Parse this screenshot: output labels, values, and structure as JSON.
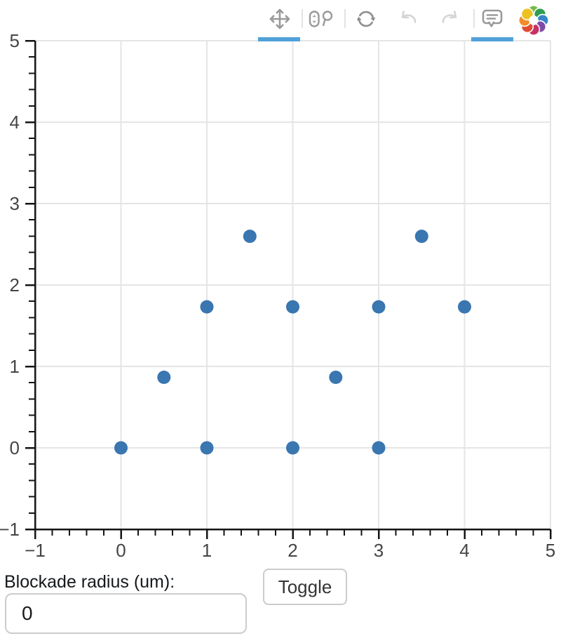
{
  "page": {
    "background": "#ffffff"
  },
  "toolbar": {
    "icon_color": "#9a9a9a",
    "disabled_icon_color": "#d5d5d5",
    "active_highlight_color": "#50a1d8",
    "logo_colors": [
      "#74BB44",
      "#2F9E4F",
      "#3686C7",
      "#7D4DA8",
      "#C63168",
      "#E14B31",
      "#F28C28",
      "#EDC21C"
    ],
    "tools": [
      {
        "id": "pan",
        "active": true
      },
      {
        "id": "wheel-zoom",
        "active": false
      },
      {
        "id": "reset",
        "active": false
      },
      {
        "id": "undo",
        "disabled": true
      },
      {
        "id": "redo",
        "disabled": true
      },
      {
        "id": "hover",
        "active": true
      }
    ]
  },
  "chart_data": {
    "type": "scatter",
    "title": "",
    "xlabel": "",
    "ylabel": "",
    "xlim": [
      -1,
      5
    ],
    "ylim": [
      -1,
      5
    ],
    "x_ticks": [
      -1,
      0,
      1,
      2,
      3,
      4,
      5
    ],
    "y_ticks": [
      -1,
      0,
      1,
      2,
      3,
      4,
      5
    ],
    "minor_tick_step": 0.2,
    "grid": true,
    "grid_color": "#e5e5e5",
    "axis_color": "#141414",
    "tick_label_color": "#454545",
    "point_color": "#3a76b0",
    "point_radius_px": 9.5,
    "points": [
      [
        0,
        0
      ],
      [
        1,
        0
      ],
      [
        2,
        0
      ],
      [
        3,
        0
      ],
      [
        0.5,
        0.866
      ],
      [
        2.5,
        0.866
      ],
      [
        1,
        1.732
      ],
      [
        2,
        1.732
      ],
      [
        3,
        1.732
      ],
      [
        4,
        1.732
      ],
      [
        1.5,
        2.598
      ],
      [
        3.5,
        2.598
      ]
    ]
  },
  "controls": {
    "input_label": "Blockade radius (um):",
    "input_value": "0",
    "toggle_label": "Toggle"
  }
}
